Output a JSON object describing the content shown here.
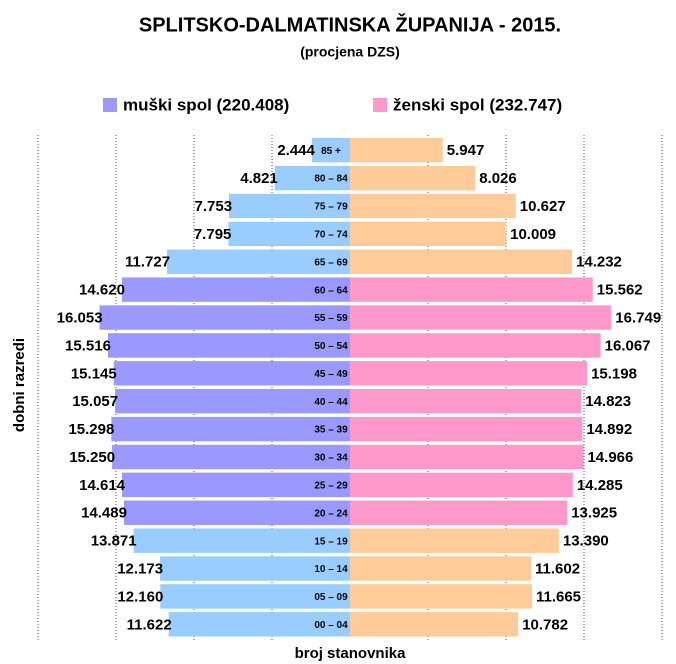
{
  "chart_data": {
    "type": "pyramid",
    "title": "SPLITSKO-DALMATINSKA ŽUPANIJA - 2015.",
    "subtitle": "(procjena DZS)",
    "x_label": "broj stanovnika",
    "y_label": "dobni razredi",
    "categories": [
      "85 +",
      "80 – 84",
      "75 – 79",
      "70 – 74",
      "65 – 69",
      "60 – 64",
      "55 – 59",
      "50 – 54",
      "45 – 49",
      "40 – 44",
      "35 – 39",
      "30 – 34",
      "25 – 29",
      "20 – 24",
      "15 – 19",
      "10 – 14",
      "05 – 09",
      "00 – 04"
    ],
    "xlim": [
      -20000,
      20000
    ],
    "grid": true,
    "series": [
      {
        "name": "muški spol (220.408)",
        "color": "#9999ff",
        "side": "left",
        "colors": [
          "#99ccff",
          "#99ccff",
          "#99ccff",
          "#99ccff",
          "#99ccff",
          "#9999ff",
          "#9999ff",
          "#9999ff",
          "#9999ff",
          "#9999ff",
          "#9999ff",
          "#9999ff",
          "#9999ff",
          "#9999ff",
          "#99ccff",
          "#99ccff",
          "#99ccff",
          "#99ccff"
        ],
        "values": [
          2444,
          4821,
          7753,
          7795,
          11727,
          14620,
          16053,
          15516,
          15145,
          15057,
          15298,
          15250,
          14614,
          14489,
          13871,
          12173,
          12160,
          11622
        ],
        "value_labels": [
          "2.444",
          "4.821",
          "7.753",
          "7.795",
          "11.727",
          "14.620",
          "16.053",
          "15.516",
          "15.145",
          "15.057",
          "15.298",
          "15.250",
          "14.614",
          "14.489",
          "13.871",
          "12.173",
          "12.160",
          "11.622"
        ]
      },
      {
        "name": "ženski spol (232.747)",
        "color": "#ff99cc",
        "side": "right",
        "colors": [
          "#ffcc99",
          "#ffcc99",
          "#ffcc99",
          "#ffcc99",
          "#ffcc99",
          "#ff99cc",
          "#ff99cc",
          "#ff99cc",
          "#ff99cc",
          "#ff99cc",
          "#ff99cc",
          "#ff99cc",
          "#ff99cc",
          "#ff99cc",
          "#ffcc99",
          "#ffcc99",
          "#ffcc99",
          "#ffcc99"
        ],
        "values": [
          5947,
          8026,
          10627,
          10009,
          14232,
          15562,
          16749,
          16067,
          15198,
          14823,
          14892,
          14966,
          14285,
          13925,
          13390,
          11602,
          11665,
          10782
        ],
        "value_labels": [
          "5.947",
          "8.026",
          "10.627",
          "10.009",
          "14.232",
          "15.562",
          "16.749",
          "16.067",
          "15.198",
          "14.823",
          "14.892",
          "14.966",
          "14.285",
          "13.925",
          "13.390",
          "11.602",
          "11.665",
          "10.782"
        ]
      }
    ]
  }
}
